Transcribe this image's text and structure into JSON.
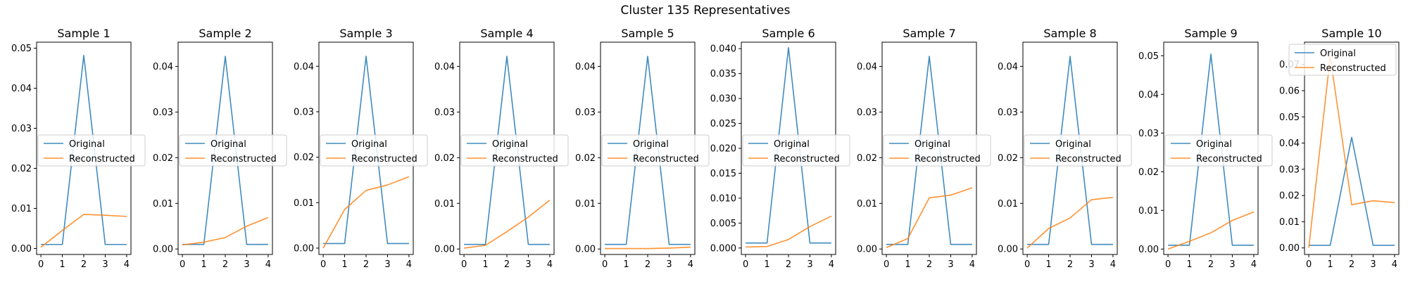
{
  "figure": {
    "suptitle": "Cluster 135 Representatives"
  },
  "colors": {
    "original": "#1f77b4",
    "reconstructed": "#ff7f0e",
    "axis": "#000000",
    "legend_edge": "#cccccc"
  },
  "chart_data": [
    {
      "type": "line",
      "title": "Sample 1",
      "x": [
        0,
        1,
        2,
        3,
        4
      ],
      "ylim": [
        -0.0015,
        0.0515
      ],
      "yticks": [
        0.0,
        0.01,
        0.02,
        0.03,
        0.04,
        0.05
      ],
      "ytick_labels": [
        "0.00",
        "0.01",
        "0.02",
        "0.03",
        "0.04",
        "0.05"
      ],
      "xticks": [
        0,
        1,
        2,
        3,
        4
      ],
      "legend_loc": "center-left",
      "series": [
        {
          "name": "Original",
          "values": [
            0.001,
            0.001,
            0.0482,
            0.001,
            0.001
          ]
        },
        {
          "name": "Reconstructed",
          "values": [
            0.0003,
            0.0045,
            0.0085,
            0.0083,
            0.008
          ]
        }
      ]
    },
    {
      "type": "line",
      "title": "Sample 2",
      "x": [
        0,
        1,
        2,
        3,
        4
      ],
      "ylim": [
        -0.0012,
        0.0453
      ],
      "yticks": [
        0.0,
        0.01,
        0.02,
        0.03,
        0.04
      ],
      "ytick_labels": [
        "0.00",
        "0.01",
        "0.02",
        "0.03",
        "0.04"
      ],
      "xticks": [
        0,
        1,
        2,
        3,
        4
      ],
      "legend_loc": "center-left",
      "series": [
        {
          "name": "Original",
          "values": [
            0.001,
            0.001,
            0.0422,
            0.001,
            0.001
          ]
        },
        {
          "name": "Reconstructed",
          "values": [
            0.0009,
            0.0015,
            0.0025,
            0.005,
            0.0069
          ]
        }
      ]
    },
    {
      "type": "line",
      "title": "Sample 3",
      "x": [
        0,
        1,
        2,
        3,
        4
      ],
      "ylim": [
        -0.0014,
        0.0453
      ],
      "yticks": [
        0.0,
        0.01,
        0.02,
        0.03,
        0.04
      ],
      "ytick_labels": [
        "0.00",
        "0.01",
        "0.02",
        "0.03",
        "0.04"
      ],
      "xticks": [
        0,
        1,
        2,
        3,
        4
      ],
      "legend_loc": "center-left",
      "series": [
        {
          "name": "Original",
          "values": [
            0.001,
            0.001,
            0.0422,
            0.001,
            0.001
          ]
        },
        {
          "name": "Reconstructed",
          "values": [
            0.0,
            0.0085,
            0.0127,
            0.0139,
            0.0157
          ]
        }
      ]
    },
    {
      "type": "line",
      "title": "Sample 4",
      "x": [
        0,
        1,
        2,
        3,
        4
      ],
      "ylim": [
        -0.0012,
        0.0453
      ],
      "yticks": [
        0.0,
        0.01,
        0.02,
        0.03,
        0.04
      ],
      "ytick_labels": [
        "0.00",
        "0.01",
        "0.02",
        "0.03",
        "0.04"
      ],
      "xticks": [
        0,
        1,
        2,
        3,
        4
      ],
      "legend_loc": "center-left",
      "series": [
        {
          "name": "Original",
          "values": [
            0.001,
            0.001,
            0.0422,
            0.001,
            0.001
          ]
        },
        {
          "name": "Reconstructed",
          "values": [
            0.0002,
            0.0008,
            0.0038,
            0.007,
            0.0107
          ]
        }
      ]
    },
    {
      "type": "line",
      "title": "Sample 5",
      "x": [
        0,
        1,
        2,
        3,
        4
      ],
      "ylim": [
        -0.0012,
        0.0453
      ],
      "yticks": [
        0.0,
        0.01,
        0.02,
        0.03,
        0.04
      ],
      "ytick_labels": [
        "0.00",
        "0.01",
        "0.02",
        "0.03",
        "0.04"
      ],
      "xticks": [
        0,
        1,
        2,
        3,
        4
      ],
      "legend_loc": "center-left",
      "series": [
        {
          "name": "Original",
          "values": [
            0.001,
            0.001,
            0.0422,
            0.001,
            0.001
          ]
        },
        {
          "name": "Reconstructed",
          "values": [
            0.0001,
            0.0001,
            0.0001,
            0.0002,
            0.0004
          ]
        }
      ]
    },
    {
      "type": "line",
      "title": "Sample 6",
      "x": [
        0,
        1,
        2,
        3,
        4
      ],
      "ylim": [
        -0.0013,
        0.0413
      ],
      "yticks": [
        0.0,
        0.005,
        0.01,
        0.015,
        0.02,
        0.025,
        0.03,
        0.035,
        0.04
      ],
      "ytick_labels": [
        "0.000",
        "0.005",
        "0.010",
        "0.015",
        "0.020",
        "0.025",
        "0.030",
        "0.035",
        "0.040"
      ],
      "xticks": [
        0,
        1,
        2,
        3,
        4
      ],
      "legend_loc": "center-left",
      "series": [
        {
          "name": "Original",
          "values": [
            0.001,
            0.001,
            0.0402,
            0.001,
            0.001
          ]
        },
        {
          "name": "Reconstructed",
          "values": [
            0.0002,
            0.0003,
            0.0017,
            0.0043,
            0.0064
          ]
        }
      ]
    },
    {
      "type": "line",
      "title": "Sample 7",
      "x": [
        0,
        1,
        2,
        3,
        4
      ],
      "ylim": [
        -0.0012,
        0.0453
      ],
      "yticks": [
        0.0,
        0.01,
        0.02,
        0.03,
        0.04
      ],
      "ytick_labels": [
        "0.00",
        "0.01",
        "0.02",
        "0.03",
        "0.04"
      ],
      "xticks": [
        0,
        1,
        2,
        3,
        4
      ],
      "legend_loc": "center-left",
      "series": [
        {
          "name": "Original",
          "values": [
            0.001,
            0.001,
            0.0422,
            0.001,
            0.001
          ]
        },
        {
          "name": "Reconstructed",
          "values": [
            0.0003,
            0.0023,
            0.0112,
            0.0118,
            0.0134
          ]
        }
      ]
    },
    {
      "type": "line",
      "title": "Sample 8",
      "x": [
        0,
        1,
        2,
        3,
        4
      ],
      "ylim": [
        -0.0012,
        0.0453
      ],
      "yticks": [
        0.0,
        0.01,
        0.02,
        0.03,
        0.04
      ],
      "ytick_labels": [
        "0.00",
        "0.01",
        "0.02",
        "0.03",
        "0.04"
      ],
      "xticks": [
        0,
        1,
        2,
        3,
        4
      ],
      "legend_loc": "center-left",
      "series": [
        {
          "name": "Original",
          "values": [
            0.001,
            0.001,
            0.0422,
            0.001,
            0.001
          ]
        },
        {
          "name": "Reconstructed",
          "values": [
            0.0002,
            0.0045,
            0.0068,
            0.0108,
            0.0113
          ]
        }
      ]
    },
    {
      "type": "line",
      "title": "Sample 9",
      "x": [
        0,
        1,
        2,
        3,
        4
      ],
      "ylim": [
        -0.0014,
        0.0535
      ],
      "yticks": [
        0.0,
        0.01,
        0.02,
        0.03,
        0.04,
        0.05
      ],
      "ytick_labels": [
        "0.00",
        "0.01",
        "0.02",
        "0.03",
        "0.04",
        "0.05"
      ],
      "xticks": [
        0,
        1,
        2,
        3,
        4
      ],
      "legend_loc": "center-left",
      "series": [
        {
          "name": "Original",
          "values": [
            0.001,
            0.001,
            0.0504,
            0.001,
            0.001
          ]
        },
        {
          "name": "Reconstructed",
          "values": [
            0.0,
            0.002,
            0.0042,
            0.0074,
            0.0096
          ]
        }
      ]
    },
    {
      "type": "line",
      "title": "Sample 10",
      "x": [
        0,
        1,
        2,
        3,
        4
      ],
      "ylim": [
        -0.0025,
        0.0785
      ],
      "yticks": [
        0.0,
        0.01,
        0.02,
        0.03,
        0.04,
        0.05,
        0.06,
        0.07
      ],
      "ytick_labels": [
        "0.00",
        "0.01",
        "0.02",
        "0.03",
        "0.04",
        "0.05",
        "0.06",
        "0.07"
      ],
      "xticks": [
        0,
        1,
        2,
        3,
        4
      ],
      "legend_loc": "upper-right",
      "series": [
        {
          "name": "Original",
          "values": [
            0.001,
            0.001,
            0.0422,
            0.001,
            0.001
          ]
        },
        {
          "name": "Reconstructed",
          "values": [
            0.0001,
            0.073,
            0.0165,
            0.018,
            0.0173
          ]
        }
      ]
    }
  ]
}
